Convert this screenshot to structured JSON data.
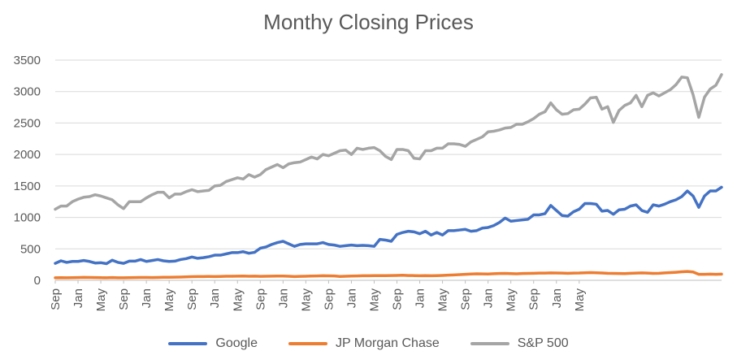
{
  "chart_data": {
    "type": "line",
    "title": "Monthy Closing Prices",
    "xlabel": "",
    "ylabel": "",
    "ylim": [
      0,
      3500
    ],
    "yticks": [
      0,
      500,
      1000,
      1500,
      2000,
      2500,
      3000,
      3500
    ],
    "x_tick_labels": [
      "Sep",
      "Jan",
      "May",
      "Sep",
      "Jan",
      "May",
      "Sep",
      "Jan",
      "May",
      "Sep",
      "Jan",
      "May",
      "Sep",
      "Jan",
      "May",
      "Sep",
      "Jan",
      "May",
      "Sep",
      "Jan",
      "May",
      "Sep",
      "Jan",
      "May"
    ],
    "x_start_tick_index": 0,
    "months_per_tick": 4,
    "grid": "horizontal",
    "legend": "bottom",
    "series": [
      {
        "name": "Google",
        "color": "#4472C4",
        "values": [
          270,
          310,
          285,
          300,
          300,
          315,
          300,
          275,
          280,
          265,
          320,
          285,
          270,
          305,
          305,
          330,
          300,
          315,
          330,
          310,
          300,
          305,
          330,
          345,
          370,
          350,
          360,
          375,
          400,
          400,
          420,
          440,
          440,
          455,
          430,
          445,
          510,
          530,
          570,
          600,
          620,
          580,
          540,
          570,
          580,
          580,
          580,
          600,
          570,
          560,
          540,
          550,
          560,
          550,
          555,
          550,
          540,
          650,
          640,
          620,
          730,
          760,
          780,
          770,
          740,
          780,
          720,
          760,
          720,
          790,
          790,
          800,
          810,
          780,
          790,
          830,
          840,
          870,
          920,
          990,
          940,
          950,
          960,
          970,
          1040,
          1040,
          1060,
          1190,
          1110,
          1030,
          1020,
          1090,
          1130,
          1220,
          1220,
          1210,
          1100,
          1110,
          1050,
          1120,
          1130,
          1180,
          1200,
          1110,
          1080,
          1200,
          1180,
          1210,
          1250,
          1280,
          1330,
          1420,
          1340,
          1160,
          1340,
          1420,
          1420,
          1480
        ]
      },
      {
        "name": "JP Morgan Chase",
        "color": "#ED7D31",
        "values": [
          40,
          42,
          40,
          42,
          44,
          47,
          45,
          43,
          42,
          40,
          43,
          41,
          40,
          42,
          44,
          46,
          45,
          44,
          46,
          48,
          48,
          50,
          52,
          55,
          58,
          60,
          60,
          62,
          60,
          62,
          64,
          65,
          66,
          67,
          64,
          66,
          63,
          65,
          66,
          68,
          68,
          65,
          60,
          63,
          65,
          68,
          70,
          72,
          71,
          70,
          62,
          65,
          68,
          70,
          72,
          73,
          74,
          75,
          74,
          76,
          78,
          80,
          76,
          75,
          72,
          74,
          72,
          75,
          78,
          82,
          86,
          90,
          95,
          100,
          103,
          102,
          100,
          105,
          108,
          110,
          106,
          104,
          108,
          110,
          112,
          115,
          114,
          118,
          116,
          114,
          112,
          114,
          116,
          120,
          122,
          120,
          116,
          112,
          110,
          108,
          106,
          112,
          115,
          118,
          115,
          110,
          112,
          118,
          122,
          128,
          135,
          140,
          132,
          95,
          95,
          98,
          96,
          98
        ]
      },
      {
        "name": "S&P 500",
        "color": "#A5A5A5",
        "values": [
          1130,
          1180,
          1180,
          1250,
          1290,
          1320,
          1330,
          1360,
          1340,
          1310,
          1280,
          1200,
          1140,
          1250,
          1250,
          1250,
          1310,
          1360,
          1400,
          1400,
          1310,
          1370,
          1370,
          1410,
          1440,
          1410,
          1420,
          1430,
          1500,
          1510,
          1570,
          1600,
          1630,
          1610,
          1680,
          1640,
          1680,
          1760,
          1800,
          1840,
          1790,
          1850,
          1870,
          1880,
          1920,
          1960,
          1930,
          2000,
          1980,
          2020,
          2060,
          2070,
          2000,
          2100,
          2080,
          2100,
          2110,
          2060,
          1970,
          1920,
          2080,
          2080,
          2060,
          1940,
          1930,
          2060,
          2060,
          2100,
          2100,
          2170,
          2170,
          2160,
          2130,
          2200,
          2240,
          2280,
          2360,
          2370,
          2390,
          2420,
          2430,
          2480,
          2480,
          2520,
          2570,
          2640,
          2680,
          2820,
          2710,
          2640,
          2650,
          2710,
          2720,
          2800,
          2900,
          2910,
          2720,
          2760,
          2510,
          2700,
          2780,
          2820,
          2940,
          2760,
          2940,
          2980,
          2930,
          2980,
          3030,
          3110,
          3230,
          3220,
          2950,
          2590,
          2910,
          3040,
          3100,
          3270
        ]
      }
    ]
  }
}
